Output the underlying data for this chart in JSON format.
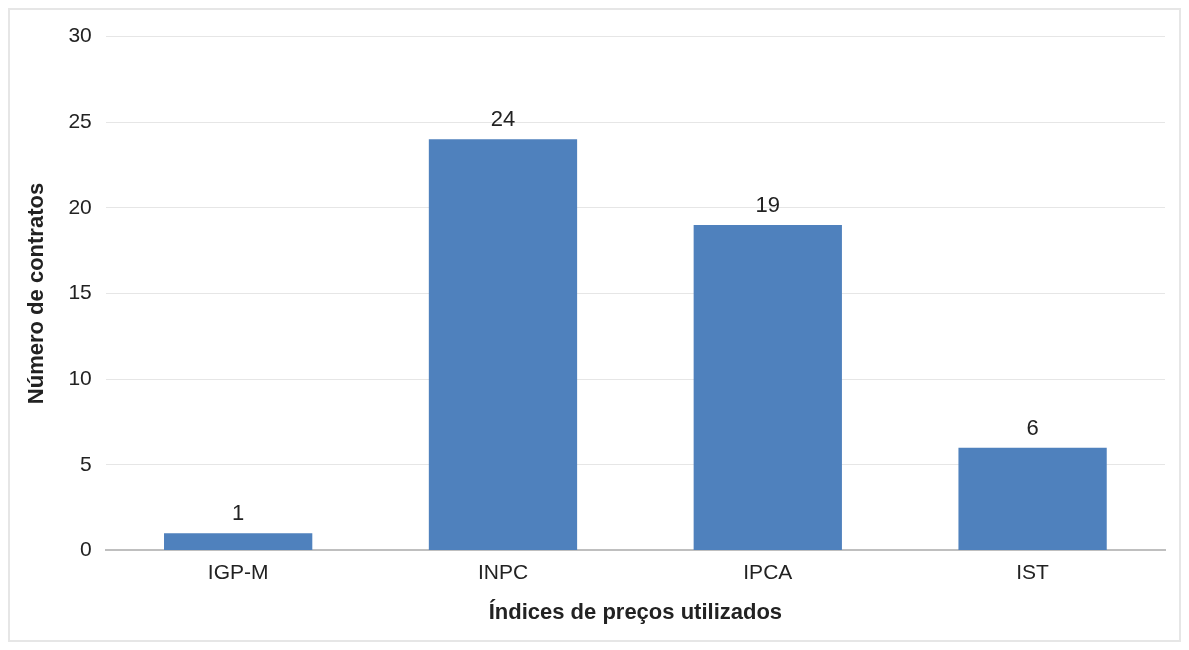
{
  "chart_data": {
    "type": "bar",
    "xlabel": "Índices de preços utilizados",
    "ylabel": "Número de contratos",
    "categories": [
      "IGP-M",
      "INPC",
      "IPCA",
      "IST"
    ],
    "series": [
      {
        "color": "#4f81bd",
        "values": [
          1,
          24,
          19,
          6
        ]
      }
    ],
    "ylim": [
      0,
      30
    ],
    "yticks": [
      0,
      5,
      10,
      15,
      20,
      25,
      30
    ],
    "grid": "y",
    "legend": false,
    "data_labels": true
  }
}
